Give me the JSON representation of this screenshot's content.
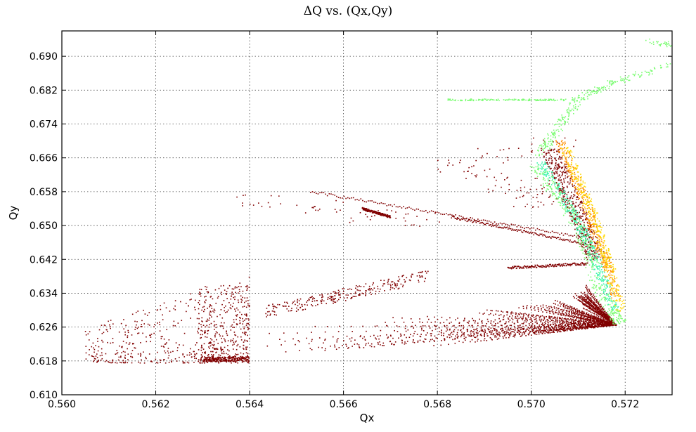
{
  "chart_data": {
    "type": "scatter",
    "title": "ΔQ vs. (Qx,Qy)",
    "xlabel": "Qx",
    "ylabel": "Qy",
    "xlim": [
      0.56,
      0.573
    ],
    "ylim": [
      0.61,
      0.696
    ],
    "grid": true,
    "xticks": [
      "0.560",
      "0.562",
      "0.564",
      "0.566",
      "0.568",
      "0.570",
      "0.572"
    ],
    "yticks": [
      "0.610",
      "0.618",
      "0.626",
      "0.634",
      "0.642",
      "0.650",
      "0.658",
      "0.666",
      "0.674",
      "0.682",
      "0.690"
    ],
    "colors": {
      "dark": "#800000",
      "orange": "#ff8c00",
      "yellow": "#ffd700",
      "green": "#7cfc73",
      "aqua": "#40f5b0"
    },
    "series": [
      {
        "color": "#800000",
        "fan_tip": [
          0.5718,
          0.6265
        ],
        "fan_base": [
          [
            0.564,
            0.6182
          ],
          [
            0.568,
            0.62
          ],
          [
            0.57,
            0.6225
          ],
          [
            0.571,
            0.6255
          ],
          [
            0.5712,
            0.629
          ]
        ],
        "fan_spread": [
          [
            0.565,
            0.633
          ],
          [
            0.568,
            0.635
          ],
          [
            0.57,
            0.637
          ],
          [
            0.571,
            0.64
          ],
          [
            0.5712,
            0.641
          ]
        ],
        "scattered_cluster_x_range": [
          0.5605,
          0.564
        ],
        "scattered_cluster_y_range": [
          0.6175,
          0.6385
        ],
        "lines": [
          {
            "from": [
              0.5653,
              0.658
            ],
            "to": [
              0.5712,
              0.647
            ]
          },
          {
            "from": [
              0.5683,
              0.652
            ],
            "to": [
              0.5712,
              0.6455
            ]
          },
          {
            "from": [
              0.5695,
              0.64
            ],
            "to": [
              0.5712,
              0.641
            ]
          },
          {
            "from": [
              0.5664,
              0.654
            ],
            "to": [
              0.567,
              0.652
            ]
          }
        ],
        "upper_points": [
          [
            0.5685,
            0.664
          ],
          [
            0.569,
            0.662
          ],
          [
            0.5695,
            0.658
          ],
          [
            0.57,
            0.656
          ],
          [
            0.5705,
            0.656
          ],
          [
            0.5699,
            0.6595
          ],
          [
            0.5693,
            0.6665
          ],
          [
            0.5705,
            0.669
          ],
          [
            0.5642,
            0.656
          ],
          [
            0.5655,
            0.6545
          ],
          [
            0.5666,
            0.652
          ],
          [
            0.5676,
            0.6515
          ]
        ]
      },
      {
        "color": "#7cfc73",
        "upper_branch": [
          [
            0.5702,
            0.667
          ],
          [
            0.5705,
            0.672
          ],
          [
            0.571,
            0.68
          ],
          [
            0.5718,
            0.684
          ],
          [
            0.573,
            0.688
          ],
          [
            0.574,
            0.6905
          ],
          [
            0.5725,
            0.6935
          ]
        ],
        "horizontal_band": {
          "x": [
            0.5682,
            0.5708
          ],
          "y": 0.6797
        },
        "lower_branch": [
          [
            0.5701,
            0.664
          ],
          [
            0.5705,
            0.658
          ],
          [
            0.5709,
            0.652
          ],
          [
            0.5712,
            0.645
          ],
          [
            0.5714,
            0.636
          ],
          [
            0.5717,
            0.63
          ],
          [
            0.5719,
            0.627
          ]
        ]
      },
      {
        "color": "#40f5b0",
        "band": [
          [
            0.5702,
            0.665
          ],
          [
            0.5706,
            0.658
          ],
          [
            0.571,
            0.651
          ],
          [
            0.5713,
            0.644
          ],
          [
            0.5715,
            0.638
          ],
          [
            0.5718,
            0.63
          ]
        ]
      },
      {
        "color": "#ff8c00",
        "band": [
          [
            0.5706,
            0.67
          ],
          [
            0.5709,
            0.662
          ],
          [
            0.5712,
            0.654
          ],
          [
            0.5714,
            0.647
          ],
          [
            0.5716,
            0.641
          ],
          [
            0.5718,
            0.633
          ]
        ]
      },
      {
        "color": "#ffd700",
        "band": [
          [
            0.5707,
            0.669
          ],
          [
            0.571,
            0.661
          ],
          [
            0.5713,
            0.653
          ],
          [
            0.5715,
            0.646
          ],
          [
            0.5717,
            0.639
          ],
          [
            0.5719,
            0.63
          ]
        ]
      }
    ]
  }
}
